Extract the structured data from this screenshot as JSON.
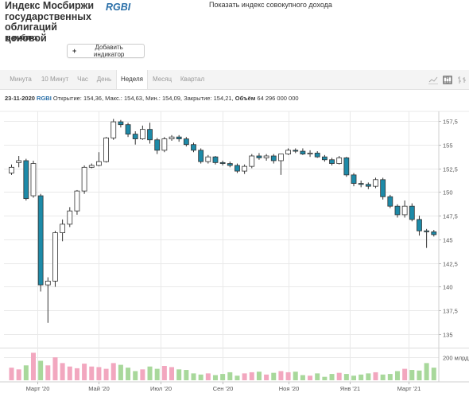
{
  "header": {
    "title": "Индекс Мосбиржи государственных облигаций ценовой",
    "ticker": "RGBI",
    "currency_note": "в рублях",
    "total_return_link": "Показать индекс совокупного дохода",
    "add_indicator_label": "Добавить индикатор"
  },
  "tabs": [
    {
      "label": "Минута",
      "active": false
    },
    {
      "label": "10 Минут",
      "active": false
    },
    {
      "label": "Час",
      "active": false
    },
    {
      "label": "День",
      "active": false
    },
    {
      "label": "Неделя",
      "active": true
    },
    {
      "label": "Месяц",
      "active": false
    },
    {
      "label": "Квартал",
      "active": false
    }
  ],
  "chart_type_icons": [
    "line-chart-icon",
    "candlestick-chart-icon",
    "bar-chart-icon"
  ],
  "info": {
    "date": "23-11-2020",
    "ticker": "RGBI",
    "open_label": "Открытие:",
    "open": "154,36",
    "high_label": "Макс.:",
    "high": "154,63",
    "low_label": "Мин.:",
    "low": "154,09",
    "close_label": "Закрытие:",
    "close": "154,21",
    "volume_label": "Объём",
    "volume": "64 296 000 000"
  },
  "colors": {
    "up": "#ffffff",
    "down": "#1d8aa8",
    "wick": "#333333",
    "vol_up": "#f2a7bf",
    "vol_down": "#a8d89b",
    "grid": "#e9e9e9"
  },
  "chart_data": {
    "type": "candlestick",
    "ylim": [
      134,
      158.5
    ],
    "y_ticks": [
      135,
      137.5,
      140,
      142.5,
      145,
      147.5,
      150,
      152.5,
      155,
      157.5
    ],
    "y_tick_labels": [
      "135",
      "137,5",
      "140",
      "142,5",
      "145",
      "147,5",
      "150",
      "152,5",
      "155",
      "157,5"
    ],
    "x_tick_labels": [
      "Март '20",
      "Май '20",
      "Июл '20",
      "Сен '20",
      "Ноя '20",
      "Янв '21",
      "Март '21"
    ],
    "volume_axis_label": "200 млрд",
    "volume_ylim": [
      0,
      250
    ],
    "candles": [
      {
        "o": 152.0,
        "h": 152.9,
        "l": 151.8,
        "c": 152.6
      },
      {
        "o": 153.1,
        "h": 153.8,
        "l": 152.6,
        "c": 153.3
      },
      {
        "o": 153.3,
        "h": 153.5,
        "l": 149.1,
        "c": 149.3
      },
      {
        "o": 149.6,
        "h": 153.3,
        "l": 149.4,
        "c": 153.0
      },
      {
        "o": 149.6,
        "h": 149.8,
        "l": 139.5,
        "c": 140.2
      },
      {
        "o": 140.2,
        "h": 141.0,
        "l": 136.2,
        "c": 140.6
      },
      {
        "o": 140.6,
        "h": 145.9,
        "l": 140.0,
        "c": 145.7
      },
      {
        "o": 145.7,
        "h": 147.1,
        "l": 144.8,
        "c": 146.6
      },
      {
        "o": 146.6,
        "h": 148.4,
        "l": 146.3,
        "c": 148.0
      },
      {
        "o": 148.0,
        "h": 150.2,
        "l": 147.6,
        "c": 150.1
      },
      {
        "o": 150.1,
        "h": 152.8,
        "l": 149.8,
        "c": 152.6
      },
      {
        "o": 152.6,
        "h": 153.0,
        "l": 152.5,
        "c": 152.8
      },
      {
        "o": 152.8,
        "h": 154.2,
        "l": 152.7,
        "c": 153.2
      },
      {
        "o": 153.2,
        "h": 155.8,
        "l": 153.1,
        "c": 155.7
      },
      {
        "o": 155.7,
        "h": 157.7,
        "l": 155.5,
        "c": 157.4
      },
      {
        "o": 157.4,
        "h": 157.6,
        "l": 156.8,
        "c": 157.1
      },
      {
        "o": 157.1,
        "h": 157.3,
        "l": 155.8,
        "c": 156.1
      },
      {
        "o": 156.1,
        "h": 156.4,
        "l": 155.0,
        "c": 155.6
      },
      {
        "o": 155.6,
        "h": 157.0,
        "l": 155.5,
        "c": 156.6
      },
      {
        "o": 156.6,
        "h": 157.3,
        "l": 155.1,
        "c": 155.5
      },
      {
        "o": 155.5,
        "h": 155.7,
        "l": 154.0,
        "c": 154.4
      },
      {
        "o": 154.4,
        "h": 155.8,
        "l": 154.2,
        "c": 155.6
      },
      {
        "o": 155.6,
        "h": 156.0,
        "l": 155.4,
        "c": 155.8
      },
      {
        "o": 155.8,
        "h": 156.0,
        "l": 155.3,
        "c": 155.6
      },
      {
        "o": 155.6,
        "h": 155.8,
        "l": 154.8,
        "c": 155.0
      },
      {
        "o": 155.0,
        "h": 155.2,
        "l": 154.2,
        "c": 154.4
      },
      {
        "o": 154.4,
        "h": 154.6,
        "l": 153.0,
        "c": 153.2
      },
      {
        "o": 153.2,
        "h": 153.9,
        "l": 153.0,
        "c": 153.7
      },
      {
        "o": 153.7,
        "h": 153.8,
        "l": 152.9,
        "c": 153.1
      },
      {
        "o": 153.1,
        "h": 153.3,
        "l": 152.8,
        "c": 153.0
      },
      {
        "o": 153.0,
        "h": 153.2,
        "l": 152.6,
        "c": 152.8
      },
      {
        "o": 152.8,
        "h": 153.0,
        "l": 152.0,
        "c": 152.2
      },
      {
        "o": 152.2,
        "h": 152.9,
        "l": 151.9,
        "c": 152.7
      },
      {
        "o": 152.7,
        "h": 154.0,
        "l": 152.5,
        "c": 153.8
      },
      {
        "o": 153.8,
        "h": 154.1,
        "l": 153.4,
        "c": 153.6
      },
      {
        "o": 153.6,
        "h": 154.0,
        "l": 153.3,
        "c": 153.8
      },
      {
        "o": 153.8,
        "h": 154.0,
        "l": 153.0,
        "c": 153.3
      },
      {
        "o": 153.3,
        "h": 154.0,
        "l": 151.8,
        "c": 154.0
      },
      {
        "o": 154.0,
        "h": 154.6,
        "l": 153.9,
        "c": 154.4
      },
      {
        "o": 154.4,
        "h": 154.6,
        "l": 154.1,
        "c": 154.3
      },
      {
        "o": 154.3,
        "h": 154.6,
        "l": 153.9,
        "c": 154.0
      },
      {
        "o": 154.0,
        "h": 154.4,
        "l": 153.7,
        "c": 154.1
      },
      {
        "o": 154.1,
        "h": 154.3,
        "l": 153.6,
        "c": 153.7
      },
      {
        "o": 153.7,
        "h": 153.9,
        "l": 153.2,
        "c": 153.4
      },
      {
        "o": 153.4,
        "h": 153.6,
        "l": 152.8,
        "c": 153.0
      },
      {
        "o": 153.0,
        "h": 153.8,
        "l": 152.9,
        "c": 153.6
      },
      {
        "o": 153.6,
        "h": 153.7,
        "l": 151.6,
        "c": 151.8
      },
      {
        "o": 151.8,
        "h": 152.0,
        "l": 150.6,
        "c": 150.9
      },
      {
        "o": 150.9,
        "h": 151.2,
        "l": 150.5,
        "c": 150.8
      },
      {
        "o": 150.8,
        "h": 151.0,
        "l": 150.3,
        "c": 150.6
      },
      {
        "o": 150.6,
        "h": 151.5,
        "l": 150.4,
        "c": 151.3
      },
      {
        "o": 151.3,
        "h": 151.5,
        "l": 149.2,
        "c": 149.5
      },
      {
        "o": 149.5,
        "h": 149.7,
        "l": 148.3,
        "c": 148.5
      },
      {
        "o": 148.5,
        "h": 148.7,
        "l": 147.3,
        "c": 147.6
      },
      {
        "o": 147.6,
        "h": 149.1,
        "l": 147.3,
        "c": 148.5
      },
      {
        "o": 148.5,
        "h": 148.8,
        "l": 146.9,
        "c": 147.1
      },
      {
        "o": 147.1,
        "h": 147.5,
        "l": 145.4,
        "c": 145.9
      },
      {
        "o": 145.9,
        "h": 146.1,
        "l": 144.1,
        "c": 145.8
      },
      {
        "o": 145.8,
        "h": 146.0,
        "l": 145.3,
        "c": 145.5
      }
    ],
    "volume": [
      110,
      95,
      130,
      240,
      170,
      130,
      200,
      150,
      120,
      105,
      145,
      120,
      115,
      100,
      150,
      135,
      110,
      80,
      95,
      120,
      100,
      125,
      115,
      95,
      90,
      60,
      50,
      60,
      45,
      55,
      70,
      40,
      60,
      70,
      75,
      50,
      65,
      80,
      70,
      75,
      45,
      40,
      60,
      30,
      55,
      65,
      55,
      40,
      50,
      60,
      70,
      50,
      55,
      80,
      100,
      90,
      85,
      150,
      110
    ]
  }
}
